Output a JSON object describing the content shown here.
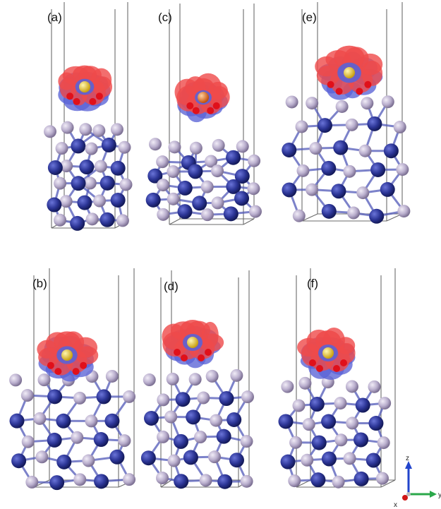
{
  "panels": [
    {
      "label": "(a)",
      "adsorbate_color": "#f2e23a"
    },
    {
      "label": "(b)",
      "adsorbate_color": "#f2e23a"
    },
    {
      "label": "(c)",
      "adsorbate_color": "#f07a1e"
    },
    {
      "label": "(d)",
      "adsorbate_color": "#f2e23a"
    },
    {
      "label": "(e)",
      "adsorbate_color": "#f2e23a"
    },
    {
      "label": "(f)",
      "adsorbate_color": "#f2e23a"
    }
  ],
  "axes": {
    "z": "z",
    "y": "y",
    "x": "x"
  },
  "colors": {
    "dark_atom": "#2c3596",
    "light_atom": "#b9aecd",
    "charge_accumulation": "#ef4a4a",
    "charge_depletion": "#5a63d6",
    "oxygen": "#e0101a",
    "cell_line": "#6b6b6b",
    "bond": "#5058b8"
  }
}
